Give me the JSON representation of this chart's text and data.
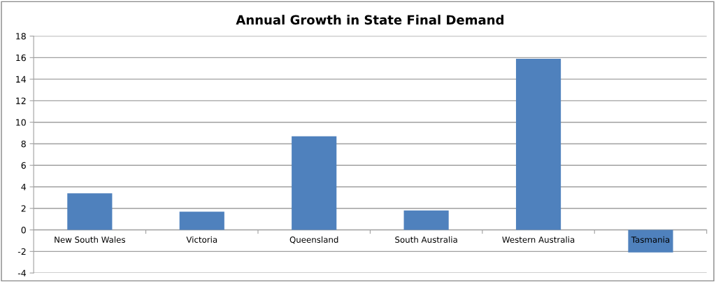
{
  "chart_data": {
    "type": "bar",
    "title": "Annual Growth in State Final Demand",
    "categories": [
      "New South Wales",
      "Victoria",
      "Queensland",
      "South Australia",
      "Western Australia",
      "Tasmania"
    ],
    "values": [
      3.4,
      1.7,
      8.7,
      1.8,
      15.9,
      -2.1
    ],
    "color": "#4f81bd",
    "ylim": [
      -4,
      18
    ],
    "yticks": [
      -4,
      -2,
      0,
      2,
      4,
      6,
      8,
      10,
      12,
      14,
      16,
      18
    ],
    "grid": "y",
    "legend": false
  }
}
